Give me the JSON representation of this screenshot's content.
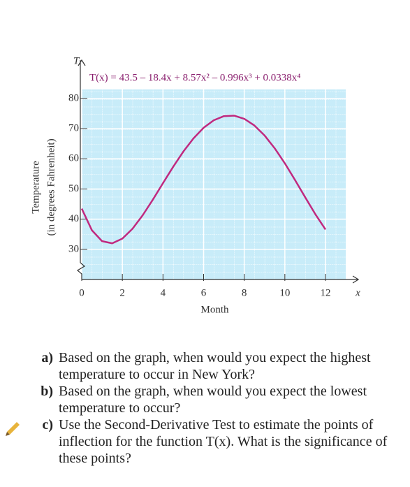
{
  "chart_data": {
    "type": "line",
    "title": "T(x) = 43.5 – 18.4x + 8.57x² – 0.996x³ + 0.0338x⁴",
    "y_axis_symbol": "T",
    "x_axis_symbol": "x",
    "x_label": "Month",
    "y_label": [
      "Temperature",
      "(in degrees Fahrenheit)"
    ],
    "x": [
      0,
      0.5,
      1,
      1.5,
      2,
      2.5,
      3,
      3.5,
      4,
      4.5,
      5,
      5.5,
      6,
      6.5,
      7,
      7.5,
      8,
      8.5,
      9,
      9.5,
      10,
      10.5,
      11,
      11.5,
      12
    ],
    "series": [
      {
        "name": "T(x)",
        "color": "#c0297f",
        "values": [
          43.5,
          36.32,
          32.71,
          31.99,
          33.55,
          36.82,
          41.28,
          46.45,
          51.93,
          57.34,
          62.38,
          66.76,
          70.29,
          72.78,
          74.15,
          74.32,
          73.27,
          71.05,
          67.75,
          63.49,
          58.5,
          52.98,
          47.26,
          41.65,
          36.57
        ]
      }
    ],
    "xlim": [
      0,
      13
    ],
    "ylim": [
      20,
      83
    ],
    "xticks": [
      0,
      2,
      4,
      6,
      8,
      10,
      12
    ],
    "yticks": [
      30,
      40,
      50,
      60,
      70,
      80
    ],
    "grid": true
  },
  "questions": [
    {
      "label": "a)",
      "text": "Based on the graph, when would you expect the highest temperature to occur in New York?"
    },
    {
      "label": "b)",
      "text": "Based on the graph, when would you expect the lowest temperature to occur?"
    },
    {
      "label": "c)",
      "text": "Use the Second-Derivative Test to estimate the points of inflection for the function T(x). What is the significance of these points?"
    }
  ]
}
